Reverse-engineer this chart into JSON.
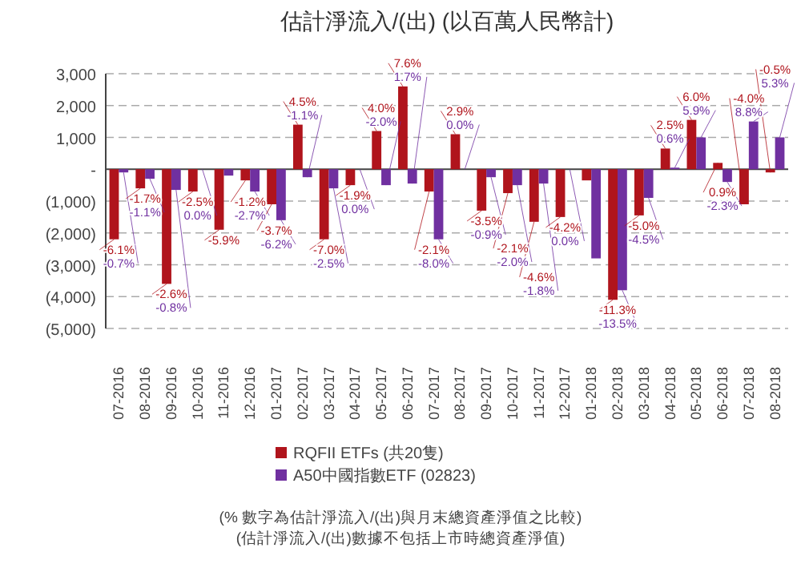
{
  "chart_data": {
    "type": "bar",
    "title": "估計淨流入/(出) (以百萬人民幣計)",
    "categories": [
      "07-2016",
      "08-2016",
      "09-2016",
      "10-2016",
      "11-2016",
      "12-2016",
      "01-2017",
      "02-2017",
      "03-2017",
      "04-2017",
      "05-2017",
      "06-2017",
      "07-2017",
      "08-2017",
      "09-2017",
      "10-2017",
      "11-2017",
      "12-2017",
      "01-2018",
      "02-2018",
      "03-2018",
      "04-2018",
      "05-2018",
      "06-2018",
      "07-2018",
      "08-2018"
    ],
    "series": [
      {
        "name": "RQFII ETFs (共20隻)",
        "color": "#b0141c",
        "values": [
          -2200,
          -600,
          -3600,
          -700,
          -1900,
          -350,
          -1100,
          1400,
          -2200,
          -500,
          1200,
          2600,
          -700,
          1100,
          -1300,
          -750,
          -1650,
          -1500,
          -350,
          -4100,
          -1450,
          650,
          1550,
          200,
          -1100,
          -100
        ]
      },
      {
        "name": "A50中國指數ETF (02823)",
        "color": "#7030a0",
        "values": [
          -100,
          -300,
          -650,
          0,
          -200,
          -700,
          -1600,
          -250,
          -600,
          0,
          -500,
          -450,
          -2200,
          0,
          -250,
          -500,
          -450,
          0,
          -2800,
          -3800,
          -900,
          50,
          1000,
          -400,
          1500,
          1000
        ]
      }
    ],
    "ylim": [
      -5000,
      3000
    ],
    "yticks": [
      {
        "value": 3000,
        "label": "3,000"
      },
      {
        "value": 2000,
        "label": "2,000"
      },
      {
        "value": 1000,
        "label": "1,000"
      },
      {
        "value": 0,
        "label": "-"
      },
      {
        "value": -1000,
        "label": "(1,000)"
      },
      {
        "value": -2000,
        "label": "(2,000)"
      },
      {
        "value": -3000,
        "label": "(3,000)"
      },
      {
        "value": -4000,
        "label": "(4,000)"
      },
      {
        "value": -5000,
        "label": "(5,000)"
      }
    ],
    "grid": "y",
    "legend": "bottom",
    "annotations": [
      {
        "text": "-6.1%",
        "x": "07-2016",
        "y": -2200
      },
      {
        "text": "-0.7%",
        "x": "07-2016",
        "y": -100
      },
      {
        "text": "-1.7%",
        "x": "08-2016",
        "y": -600
      },
      {
        "text": "-1.1%",
        "x": "08-2016",
        "y": -300
      },
      {
        "text": "-2.6%",
        "x": "09-2016",
        "y": -3600
      },
      {
        "text": "-0.8%",
        "x": "09-2016",
        "y": -650
      },
      {
        "text": "-2.5%",
        "x": "10-2016",
        "y": -700
      },
      {
        "text": "0.0%",
        "x": "10-2016",
        "y": 0
      },
      {
        "text": "-5.9%",
        "x": "11-2016",
        "y": -1900
      },
      {
        "text": "-1.2%",
        "x": "12-2016",
        "y": -350
      },
      {
        "text": "-2.7%",
        "x": "12-2016",
        "y": -700
      },
      {
        "text": "-3.7%",
        "x": "01-2017",
        "y": -1100
      },
      {
        "text": "-6.2%",
        "x": "01-2017",
        "y": -1600
      },
      {
        "text": "4.5%",
        "x": "02-2017",
        "y": 1400
      },
      {
        "text": "-1.1%",
        "x": "02-2017",
        "y": -250
      },
      {
        "text": "-7.0%",
        "x": "03-2017",
        "y": -2200
      },
      {
        "text": "-2.5%",
        "x": "03-2017",
        "y": -600
      },
      {
        "text": "-1.9%",
        "x": "04-2017",
        "y": -500
      },
      {
        "text": "0.0%",
        "x": "04-2017",
        "y": 0
      },
      {
        "text": "4.0%",
        "x": "05-2017",
        "y": 1200
      },
      {
        "text": "-2.0%",
        "x": "05-2017",
        "y": -500
      },
      {
        "text": "7.6%",
        "x": "06-2017",
        "y": 2600
      },
      {
        "text": "1.7%",
        "x": "06-2017",
        "y": -450
      },
      {
        "text": "-2.1%",
        "x": "07-2017",
        "y": -700
      },
      {
        "text": "-8.0%",
        "x": "07-2017",
        "y": -2200
      },
      {
        "text": "2.9%",
        "x": "08-2017",
        "y": 1100
      },
      {
        "text": "0.0%",
        "x": "08-2017",
        "y": 0
      },
      {
        "text": "-3.5%",
        "x": "09-2017",
        "y": -1300
      },
      {
        "text": "-0.9%",
        "x": "09-2017",
        "y": -250
      },
      {
        "text": "-2.1%",
        "x": "10-2017",
        "y": -750
      },
      {
        "text": "-2.0%",
        "x": "10-2017",
        "y": -500
      },
      {
        "text": "-4.6%",
        "x": "11-2017",
        "y": -1650
      },
      {
        "text": "-1.8%",
        "x": "11-2017",
        "y": -450
      },
      {
        "text": "-4.2%",
        "x": "12-2017",
        "y": -1500
      },
      {
        "text": "0.0%",
        "x": "12-2017",
        "y": 0
      },
      {
        "text": "-11.3%",
        "x": "02-2018",
        "y": -4100
      },
      {
        "text": "-13.5%",
        "x": "02-2018",
        "y": -3800
      },
      {
        "text": "-5.0%",
        "x": "03-2018",
        "y": -1450
      },
      {
        "text": "-4.5%",
        "x": "03-2018",
        "y": -900
      },
      {
        "text": "2.5%",
        "x": "04-2018",
        "y": 650
      },
      {
        "text": "0.6%",
        "x": "04-2018",
        "y": 50
      },
      {
        "text": "6.0%",
        "x": "05-2018",
        "y": 1550
      },
      {
        "text": "5.9%",
        "x": "05-2018",
        "y": 1000
      },
      {
        "text": "0.9%",
        "x": "06-2018",
        "y": 200
      },
      {
        "text": "-2.3%",
        "x": "06-2018",
        "y": -400
      },
      {
        "text": "-4.0%",
        "x": "07-2018",
        "y": -1100
      },
      {
        "text": "8.8%",
        "x": "07-2018",
        "y": 1500
      },
      {
        "text": "-0.5%",
        "x": "08-2018",
        "y": -100
      },
      {
        "text": "5.3%",
        "x": "08-2018",
        "y": 1000
      },
      "(% 數字為估計淨流入/(出)與月末總資產淨值之比較)",
      "(估計淨流入/(出)數據不包括上市時總資產淨值)"
    ]
  }
}
